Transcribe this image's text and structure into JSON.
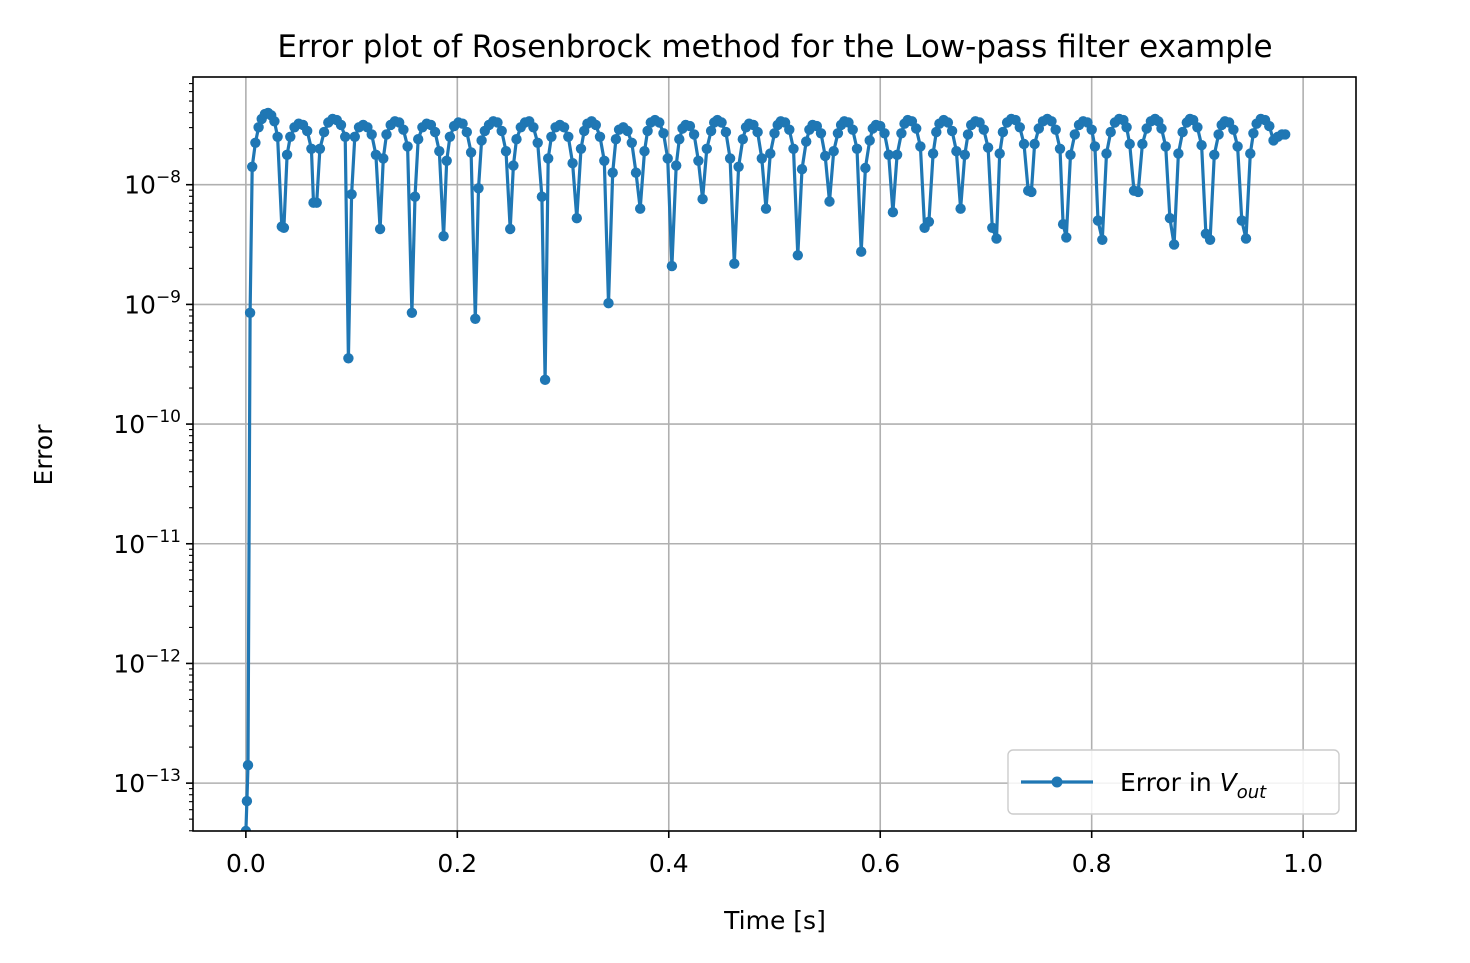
{
  "chart_data": {
    "type": "line",
    "title": "Error plot of Rosenbrock method for the Low-pass filter example",
    "xlabel": "Time [s]",
    "ylabel": "Error",
    "xlim": [
      -0.05,
      1.05
    ],
    "ylim_log10": [
      -13.4,
      -7.1
    ],
    "yscale": "log",
    "grid": true,
    "legend_position": "lower right",
    "x_ticks": [
      0.0,
      0.2,
      0.4,
      0.6,
      0.8,
      1.0
    ],
    "x_tick_labels": [
      "0.0",
      "0.2",
      "0.4",
      "0.6",
      "0.8",
      "1.0"
    ],
    "y_ticks_exponents": [
      -13,
      -12,
      -11,
      -10,
      -9,
      -8
    ],
    "y_tick_base": "10",
    "y_tick_exponent_labels": [
      "−13",
      "−12",
      "−11",
      "−10",
      "−9",
      "−8"
    ],
    "colors": {
      "series": "#1f77b4",
      "grid": "#b0b0b0",
      "axes": "#000000"
    },
    "series": [
      {
        "name": "Error in V_out",
        "legend_label": "Error in ",
        "legend_symbol": "V",
        "legend_subscript": "out",
        "marker": "dot",
        "x": [
          0.0,
          0.001,
          0.002,
          0.004,
          0.006,
          0.009,
          0.012,
          0.015,
          0.018,
          0.021,
          0.024,
          0.027,
          0.03,
          0.034,
          0.036,
          0.039,
          0.042,
          0.046,
          0.05,
          0.054,
          0.058,
          0.062,
          0.064,
          0.067,
          0.07,
          0.074,
          0.078,
          0.082,
          0.086,
          0.09,
          0.094,
          0.097,
          0.1,
          0.103,
          0.107,
          0.111,
          0.115,
          0.119,
          0.123,
          0.127,
          0.13,
          0.133,
          0.137,
          0.141,
          0.145,
          0.149,
          0.153,
          0.157,
          0.16,
          0.163,
          0.167,
          0.171,
          0.175,
          0.179,
          0.183,
          0.187,
          0.19,
          0.193,
          0.197,
          0.201,
          0.205,
          0.209,
          0.213,
          0.217,
          0.22,
          0.223,
          0.226,
          0.23,
          0.234,
          0.238,
          0.242,
          0.246,
          0.25,
          0.253,
          0.256,
          0.26,
          0.264,
          0.268,
          0.272,
          0.276,
          0.28,
          0.283,
          0.286,
          0.289,
          0.293,
          0.297,
          0.301,
          0.305,
          0.309,
          0.313,
          0.317,
          0.32,
          0.323,
          0.327,
          0.331,
          0.335,
          0.339,
          0.343,
          0.347,
          0.35,
          0.353,
          0.357,
          0.361,
          0.365,
          0.369,
          0.373,
          0.377,
          0.38,
          0.383,
          0.387,
          0.391,
          0.395,
          0.399,
          0.403,
          0.407,
          0.41,
          0.413,
          0.416,
          0.42,
          0.424,
          0.428,
          0.432,
          0.436,
          0.44,
          0.443,
          0.446,
          0.45,
          0.454,
          0.458,
          0.462,
          0.466,
          0.47,
          0.473,
          0.476,
          0.48,
          0.484,
          0.488,
          0.492,
          0.496,
          0.5,
          0.503,
          0.506,
          0.51,
          0.514,
          0.518,
          0.522,
          0.526,
          0.53,
          0.533,
          0.536,
          0.54,
          0.544,
          0.548,
          0.552,
          0.556,
          0.56,
          0.563,
          0.566,
          0.57,
          0.574,
          0.578,
          0.582,
          0.586,
          0.59,
          0.593,
          0.596,
          0.6,
          0.604,
          0.608,
          0.612,
          0.616,
          0.62,
          0.623,
          0.626,
          0.63,
          0.634,
          0.638,
          0.642,
          0.646,
          0.65,
          0.653,
          0.656,
          0.66,
          0.664,
          0.668,
          0.672,
          0.676,
          0.68,
          0.683,
          0.686,
          0.69,
          0.694,
          0.698,
          0.702,
          0.706,
          0.71,
          0.713,
          0.716,
          0.72,
          0.724,
          0.728,
          0.732,
          0.736,
          0.74,
          0.743,
          0.746,
          0.75,
          0.754,
          0.758,
          0.762,
          0.766,
          0.77,
          0.773,
          0.776,
          0.78,
          0.784,
          0.788,
          0.792,
          0.796,
          0.8,
          0.803,
          0.806,
          0.81,
          0.814,
          0.818,
          0.822,
          0.826,
          0.83,
          0.833,
          0.836,
          0.84,
          0.844,
          0.848,
          0.852,
          0.856,
          0.86,
          0.863,
          0.866,
          0.87,
          0.874,
          0.878,
          0.882,
          0.886,
          0.89,
          0.893,
          0.896,
          0.9,
          0.904,
          0.908,
          0.912,
          0.916,
          0.92,
          0.923,
          0.926,
          0.93,
          0.934,
          0.938,
          0.942,
          0.946,
          0.95,
          0.953,
          0.956,
          0.96,
          0.964,
          0.968,
          0.972,
          0.976,
          0.98,
          0.983,
          0.986,
          0.99,
          0.994,
          0.998,
          1.0
        ],
        "log10_y": [
          -13.4,
          -13.15,
          -12.85,
          -9.07,
          -7.85,
          -7.65,
          -7.52,
          -7.45,
          -7.41,
          -7.4,
          -7.42,
          -7.47,
          -7.6,
          -8.35,
          -8.36,
          -7.75,
          -7.6,
          -7.52,
          -7.49,
          -7.5,
          -7.55,
          -7.7,
          -8.15,
          -8.15,
          -7.7,
          -7.56,
          -7.48,
          -7.45,
          -7.46,
          -7.5,
          -7.6,
          -9.45,
          -8.08,
          -7.6,
          -7.52,
          -7.5,
          -7.52,
          -7.58,
          -7.75,
          -8.37,
          -7.78,
          -7.58,
          -7.5,
          -7.47,
          -7.48,
          -7.54,
          -7.68,
          -9.07,
          -8.1,
          -7.62,
          -7.52,
          -7.49,
          -7.5,
          -7.56,
          -7.72,
          -8.43,
          -7.8,
          -7.6,
          -7.51,
          -7.48,
          -7.49,
          -7.56,
          -7.73,
          -9.12,
          -8.03,
          -7.63,
          -7.55,
          -7.5,
          -7.47,
          -7.48,
          -7.55,
          -7.72,
          -8.37,
          -7.84,
          -7.62,
          -7.52,
          -7.48,
          -7.47,
          -7.52,
          -7.65,
          -8.1,
          -9.63,
          -7.78,
          -7.6,
          -7.52,
          -7.5,
          -7.52,
          -7.6,
          -7.82,
          -8.28,
          -7.7,
          -7.55,
          -7.49,
          -7.47,
          -7.5,
          -7.6,
          -7.8,
          -8.99,
          -7.9,
          -7.62,
          -7.54,
          -7.52,
          -7.55,
          -7.65,
          -7.9,
          -8.2,
          -7.72,
          -7.55,
          -7.48,
          -7.46,
          -7.48,
          -7.57,
          -7.78,
          -8.68,
          -7.84,
          -7.62,
          -7.53,
          -7.5,
          -7.51,
          -7.58,
          -7.8,
          -8.12,
          -7.7,
          -7.55,
          -7.48,
          -7.46,
          -7.48,
          -7.56,
          -7.78,
          -8.66,
          -7.85,
          -7.62,
          -7.52,
          -7.49,
          -7.5,
          -7.56,
          -7.78,
          -8.2,
          -7.74,
          -7.57,
          -7.5,
          -7.47,
          -7.48,
          -7.54,
          -7.7,
          -8.59,
          -7.87,
          -7.64,
          -7.54,
          -7.5,
          -7.51,
          -7.57,
          -7.76,
          -8.14,
          -7.72,
          -7.57,
          -7.5,
          -7.47,
          -7.48,
          -7.54,
          -7.7,
          -8.56,
          -7.86,
          -7.63,
          -7.53,
          -7.5,
          -7.51,
          -7.57,
          -7.75,
          -8.23,
          -7.75,
          -7.57,
          -7.49,
          -7.46,
          -7.47,
          -7.53,
          -7.68,
          -8.36,
          -8.31,
          -7.74,
          -7.56,
          -7.49,
          -7.46,
          -7.48,
          -7.55,
          -7.72,
          -8.2,
          -7.75,
          -7.58,
          -7.5,
          -7.47,
          -7.48,
          -7.54,
          -7.69,
          -8.36,
          -8.45,
          -7.74,
          -7.56,
          -7.48,
          -7.45,
          -7.46,
          -7.52,
          -7.66,
          -8.05,
          -8.06,
          -7.66,
          -7.53,
          -7.47,
          -7.45,
          -7.47,
          -7.54,
          -7.7,
          -8.33,
          -8.44,
          -7.75,
          -7.58,
          -7.5,
          -7.47,
          -7.48,
          -7.54,
          -7.68,
          -8.3,
          -8.46,
          -7.74,
          -7.56,
          -7.48,
          -7.45,
          -7.46,
          -7.52,
          -7.66,
          -8.05,
          -8.06,
          -7.66,
          -7.53,
          -7.47,
          -7.45,
          -7.47,
          -7.53,
          -7.68,
          -8.28,
          -8.5,
          -7.74,
          -7.56,
          -7.48,
          -7.45,
          -7.46,
          -7.52,
          -7.67,
          -8.41,
          -8.46,
          -7.75,
          -7.58,
          -7.5,
          -7.47,
          -7.48,
          -7.54,
          -7.68,
          -8.3,
          -8.45,
          -7.74,
          -7.57,
          -7.49,
          -7.45,
          -7.46,
          -7.51,
          -7.63,
          -7.6,
          -7.58,
          -7.58
        ]
      }
    ]
  }
}
